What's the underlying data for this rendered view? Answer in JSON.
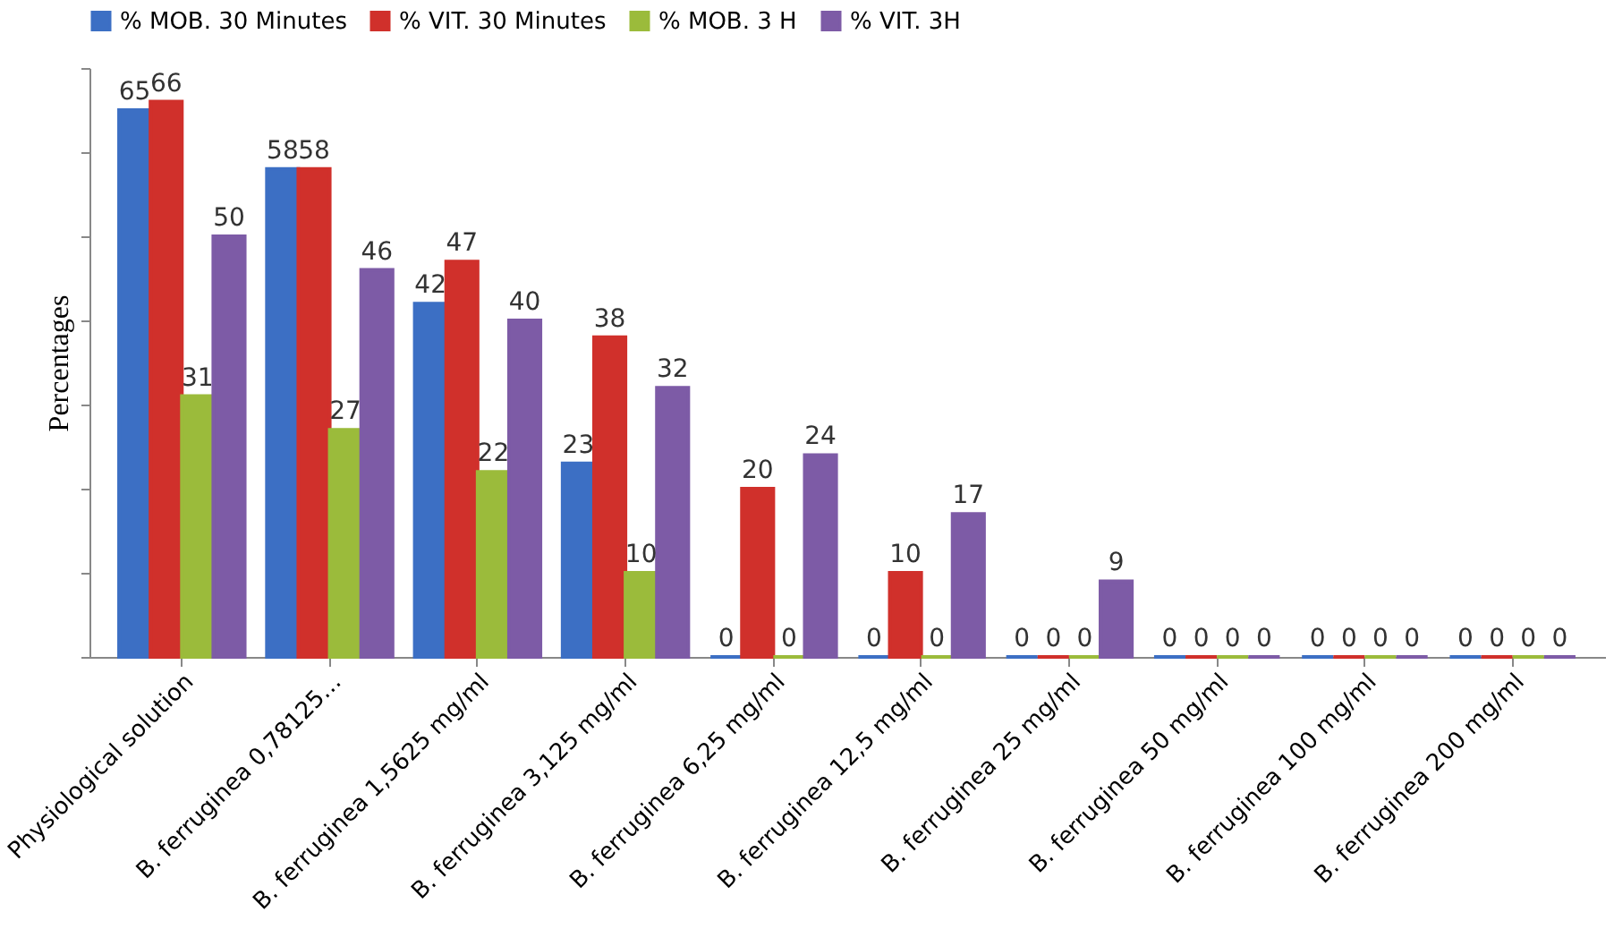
{
  "chart_data": {
    "type": "bar",
    "ylabel": "Percentages",
    "legend": "top",
    "data_labels": true,
    "tick_labels": "x",
    "grid": false,
    "categories": [
      "Physiological solution",
      "B. ferruginea 0,78125…",
      "B. ferruginea  1,5625 mg/ml",
      "B. ferruginea  3,125 mg/ml",
      "B. ferruginea  6,25 mg/ml",
      "B. ferruginea  12,5 mg/ml",
      "B. ferruginea  25 mg/ml",
      "B. ferruginea  50 mg/ml",
      "B. ferruginea  100 mg/ml",
      "B. ferruginea  200 mg/ml"
    ],
    "series": [
      {
        "name": "% MOB. 30 Minutes",
        "color": "#3c6fc4",
        "values": [
          65,
          58,
          42,
          23,
          0,
          0,
          0,
          0,
          0,
          0
        ]
      },
      {
        "name": "% VIT. 30 Minutes",
        "color": "#d0302b",
        "values": [
          66,
          58,
          47,
          38,
          20,
          10,
          0,
          0,
          0,
          0
        ]
      },
      {
        "name": "% MOB. 3 H",
        "color": "#9bbb3b",
        "values": [
          31,
          27,
          22,
          10,
          0,
          0,
          0,
          0,
          0,
          0
        ]
      },
      {
        "name": "% VIT. 3H",
        "color": "#7d5ba6",
        "values": [
          50,
          46,
          40,
          32,
          24,
          17,
          9,
          0,
          0,
          0
        ]
      }
    ]
  }
}
